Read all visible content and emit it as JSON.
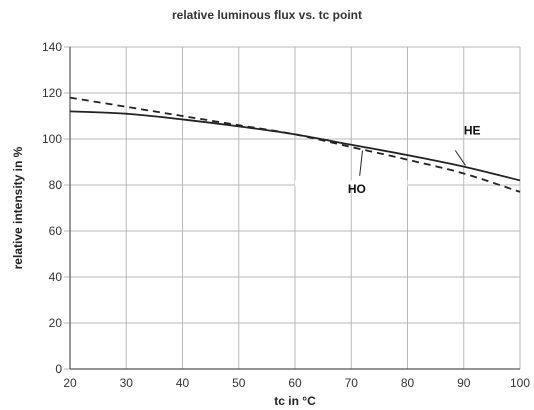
{
  "chart_data": {
    "type": "line",
    "title": "relative luminous flux vs. tc point",
    "xlabel": "tc in °C",
    "ylabel": "relative intensity in %",
    "xlim": [
      20,
      100
    ],
    "ylim": [
      0,
      140
    ],
    "xticks": [
      20,
      30,
      40,
      50,
      60,
      70,
      80,
      90,
      100
    ],
    "yticks": [
      0,
      20,
      40,
      60,
      80,
      100,
      120,
      140
    ],
    "grid": true,
    "series": [
      {
        "name": "HE",
        "style": "solid",
        "color": "#222222",
        "x": [
          20,
          30,
          40,
          50,
          60,
          70,
          80,
          90,
          100
        ],
        "y": [
          112,
          111,
          108.5,
          105.5,
          102,
          97.5,
          93,
          88,
          82
        ]
      },
      {
        "name": "HO",
        "style": "dashed",
        "color": "#222222",
        "x": [
          20,
          30,
          40,
          50,
          60,
          70,
          80,
          90,
          100
        ],
        "y": [
          118,
          114,
          110,
          106,
          102,
          96.5,
          91,
          85,
          77
        ]
      }
    ],
    "annotations": [
      {
        "text": "HE",
        "series": "HE"
      },
      {
        "text": "HO",
        "series": "HO"
      }
    ]
  }
}
